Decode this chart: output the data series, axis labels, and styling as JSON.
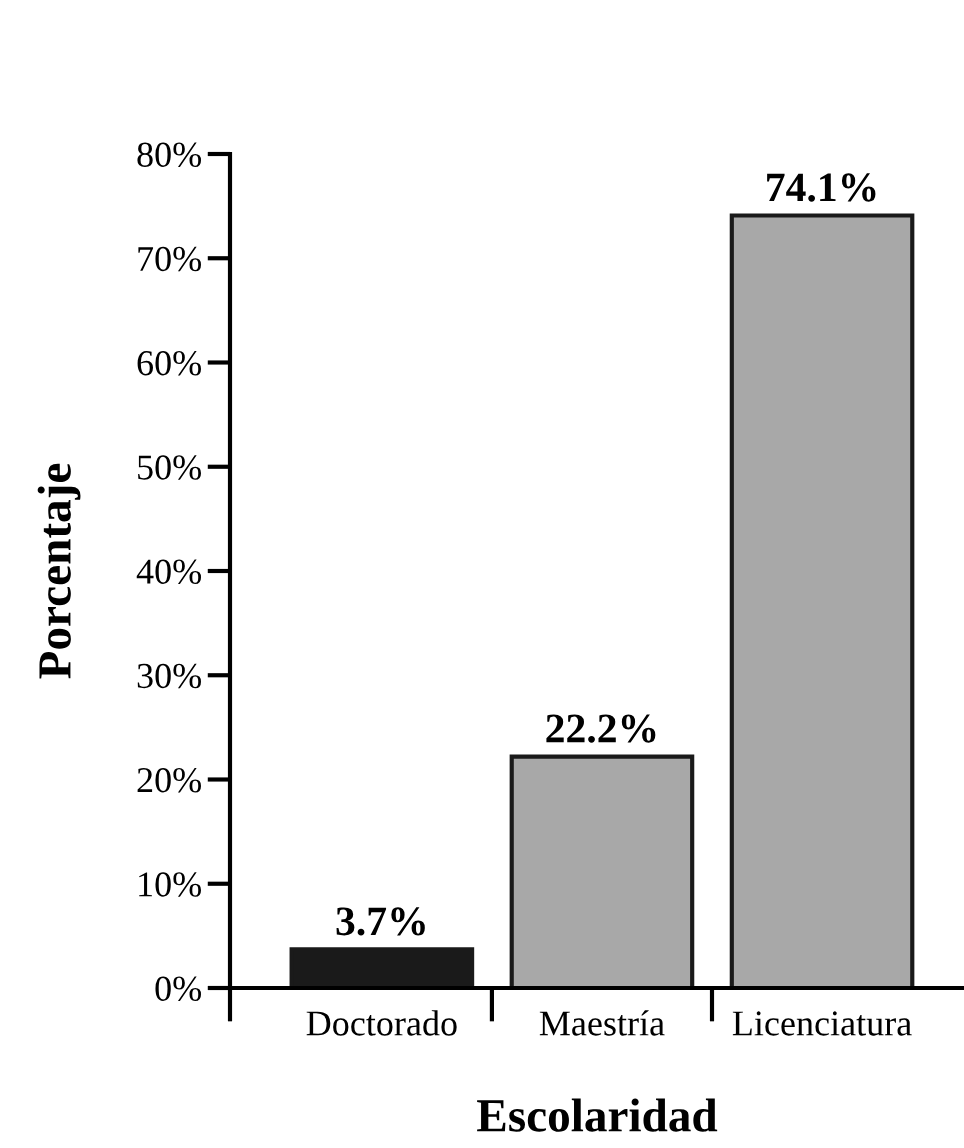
{
  "chart_data": {
    "type": "bar",
    "xlabel": "Escolaridad",
    "ylabel": "Porcentaje",
    "categories": [
      "Doctorado",
      "Maestría",
      "Licenciatura"
    ],
    "values": [
      3.7,
      22.2,
      74.1
    ],
    "colors": [
      "#1a1a1a",
      "#a8a8a8",
      "#a8a8a8"
    ],
    "value_labels": [
      "3.7%",
      "22.2%",
      "74.1%"
    ],
    "ylim": [
      0,
      80
    ],
    "yticks": [
      {
        "value": 0,
        "label": "0%"
      },
      {
        "value": 10,
        "label": "10%"
      },
      {
        "value": 20,
        "label": "20%"
      },
      {
        "value": 30,
        "label": "30%"
      },
      {
        "value": 40,
        "label": "40%"
      },
      {
        "value": 50,
        "label": "50%"
      },
      {
        "value": 60,
        "label": "60%"
      },
      {
        "value": 70,
        "label": "70%"
      },
      {
        "value": 80,
        "label": "80%"
      }
    ],
    "grid": false
  }
}
